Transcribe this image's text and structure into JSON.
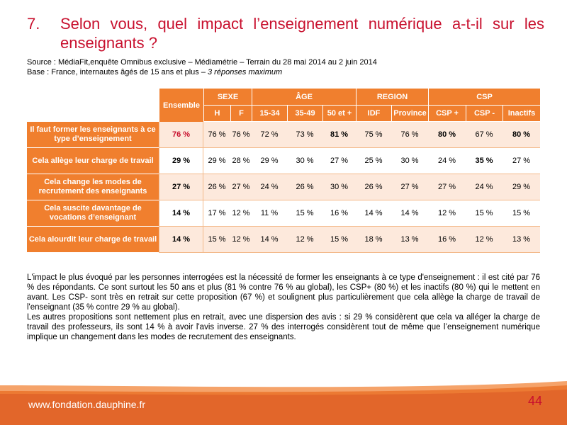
{
  "slide": {
    "number": "7.",
    "title": "Selon vous, quel impact l’enseignement numérique a-t-il sur les enseignants ?",
    "source": "Source : MédiaFit,enquête Omnibus exclusive – Médiamétrie – Terrain du 28 mai 2014 au 2 juin 2014",
    "base": "Base : France, internautes âgés de 15 ans et plus – ",
    "base_note": "3 réponses maximum",
    "footer_url": "www.fondation.dauphine.fr",
    "page_number": "44",
    "accent_color": "#f07f2e",
    "title_color": "#c8102e"
  },
  "table": {
    "ensemble": "Ensemble",
    "groups": [
      "SEXE",
      "ÂGE",
      "REGION",
      "CSP"
    ],
    "sub": [
      "H",
      "F",
      "15-34",
      "35-49",
      "50 et +",
      "IDF",
      "Province",
      "CSP +",
      "CSP -",
      "Inactifs"
    ],
    "rows": [
      {
        "label": "Il faut former les enseignants à ce type d’enseignement",
        "values": [
          "76 %",
          "76 %",
          "76 %",
          "72 %",
          "73 %",
          "81 %",
          "75 %",
          "76 %",
          "80 %",
          "67 %",
          "80 %"
        ]
      },
      {
        "label": "Cela allège leur charge de travail",
        "values": [
          "29 %",
          "29 %",
          "28 %",
          "29 %",
          "30 %",
          "27 %",
          "25 %",
          "30 %",
          "24 %",
          "35 %",
          "27 %"
        ]
      },
      {
        "label": "Cela change les modes de recrutement des enseignants",
        "values": [
          "27 %",
          "26 %",
          "27 %",
          "24 %",
          "26 %",
          "30 %",
          "26 %",
          "27 %",
          "27 %",
          "24 %",
          "29 %"
        ]
      },
      {
        "label": "Cela suscite davantage de vocations d’enseignant",
        "values": [
          "14 %",
          "17 %",
          "12 %",
          "11 %",
          "15 %",
          "16 %",
          "14 %",
          "14 %",
          "12 %",
          "15 %",
          "15 %"
        ]
      },
      {
        "label": "Cela alourdit leur charge de travail",
        "values": [
          "14 %",
          "15 %",
          "12 %",
          "14 %",
          "12 %",
          "15 %",
          "18 %",
          "13 %",
          "16 %",
          "12 %",
          "13 %"
        ]
      }
    ]
  },
  "commentary": {
    "p1": "L'impact le plus évoqué par les personnes interrogées est la nécessité de former les enseignants à ce type d'enseignement : il est cité par 76 % des répondants. Ce sont surtout les 50 ans et plus (81 % contre 76 % au global), les CSP+ (80 %) et les inactifs (80 %) qui le mettent en avant. Les CSP- sont très en retrait sur cette proposition (67 %) et soulignent plus particulièrement que cela allège la charge de travail de l'enseignant (35 % contre 29 % au global).",
    "p2": "Les autres propositions sont nettement plus en retrait, avec une dispersion des avis : si 29 % considèrent que cela va alléger la charge de travail des professeurs, ils sont 14 % à avoir l'avis inverse. 27 % des interrogés considèrent tout de même que l’enseignement numérique implique un changement dans les modes de recrutement des enseignants."
  }
}
